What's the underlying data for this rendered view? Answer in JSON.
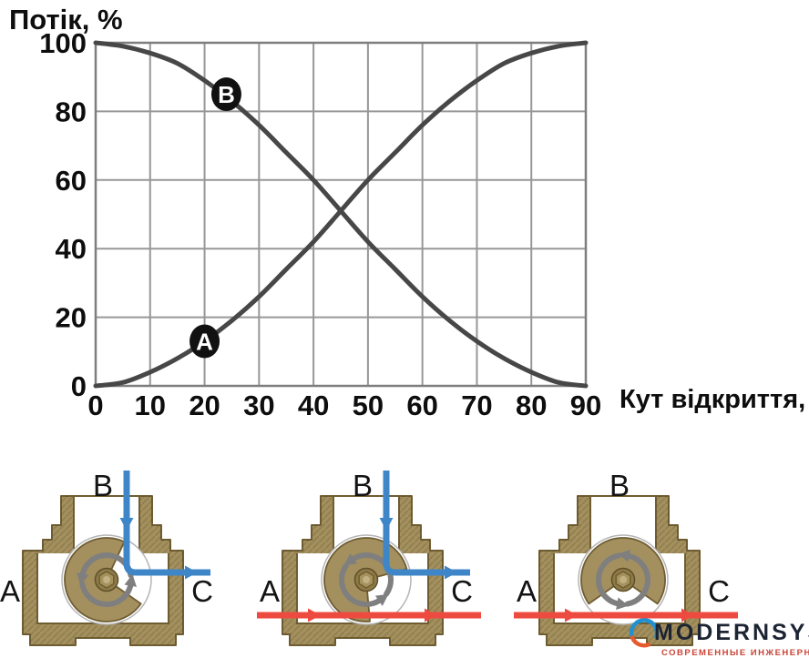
{
  "chart_data": {
    "type": "line",
    "title": "Потік, %",
    "xlabel": "Кут відкриття, °",
    "ylabel": "Потік, %",
    "x_ticks": [
      0,
      10,
      20,
      30,
      40,
      50,
      60,
      70,
      80,
      90
    ],
    "y_ticks": [
      0,
      20,
      40,
      60,
      80,
      100
    ],
    "xlim": [
      0,
      90
    ],
    "ylim": [
      0,
      100
    ],
    "grid": true,
    "series": [
      {
        "name": "A",
        "marker": {
          "label": "A",
          "x": 20,
          "y": 13
        },
        "points": [
          [
            0,
            0
          ],
          [
            5,
            1
          ],
          [
            10,
            4
          ],
          [
            15,
            8
          ],
          [
            20,
            13
          ],
          [
            25,
            19
          ],
          [
            30,
            26
          ],
          [
            35,
            34
          ],
          [
            40,
            42
          ],
          [
            45,
            51
          ],
          [
            50,
            60
          ],
          [
            55,
            68
          ],
          [
            60,
            76
          ],
          [
            65,
            83
          ],
          [
            70,
            89
          ],
          [
            75,
            94
          ],
          [
            80,
            97
          ],
          [
            85,
            99
          ],
          [
            90,
            100
          ]
        ]
      },
      {
        "name": "B",
        "marker": {
          "label": "B",
          "x": 24,
          "y": 85
        },
        "points": [
          [
            0,
            100
          ],
          [
            5,
            99
          ],
          [
            10,
            97
          ],
          [
            15,
            94
          ],
          [
            20,
            89
          ],
          [
            25,
            83
          ],
          [
            30,
            76
          ],
          [
            35,
            68
          ],
          [
            40,
            60
          ],
          [
            45,
            51
          ],
          [
            50,
            42
          ],
          [
            55,
            34
          ],
          [
            60,
            26
          ],
          [
            65,
            19
          ],
          [
            70,
            13
          ],
          [
            75,
            8
          ],
          [
            80,
            4
          ],
          [
            85,
            1
          ],
          [
            90,
            0
          ]
        ]
      }
    ],
    "colors": {
      "curve": "#474747",
      "grid": "#979797",
      "border": "#7e7e7e",
      "tick_text": "#0d0d0d",
      "marker_bg": "#111111",
      "marker_text": "#ffffff"
    }
  },
  "valves": [
    {
      "ports": {
        "top": "B",
        "left": "A",
        "right": "C"
      },
      "disc_mouth": [
        -65,
        35
      ],
      "arrow_rotation": 0,
      "flows": {
        "top_to_right": true,
        "left_to_right": false
      }
    },
    {
      "ports": {
        "top": "B",
        "left": "A",
        "right": "C"
      },
      "disc_mouth": [
        -15,
        85
      ],
      "arrow_rotation": 45,
      "flows": {
        "top_to_right": true,
        "left_to_right": true
      }
    },
    {
      "ports": {
        "top": "B",
        "left": "A",
        "right": "C"
      },
      "disc_mouth": [
        35,
        145
      ],
      "arrow_rotation": 90,
      "flows": {
        "top_to_right": false,
        "left_to_right": true
      }
    }
  ],
  "valve_colors": {
    "brass": "#a3905e",
    "brass_dark": "#6f5d32",
    "hatch": "rgba(60,45,10,0.16)",
    "ball_stroke": "#b5b5b5",
    "rotation_arrow": "#7f7f7f",
    "flow_blue": "#3e86c7",
    "flow_red": "#ee4b40",
    "label": "#141414"
  },
  "logo": {
    "name": "MODERNSYS",
    "tagline": "СОВРЕМЕННЫЕ ИНЖЕНЕРНЫЕ СИСТЕМЫ",
    "colors": {
      "name": "#1c2433",
      "tagline": "#cb4335",
      "arc_blue": "#2191d0",
      "arc_orange": "#e55b2d"
    }
  }
}
